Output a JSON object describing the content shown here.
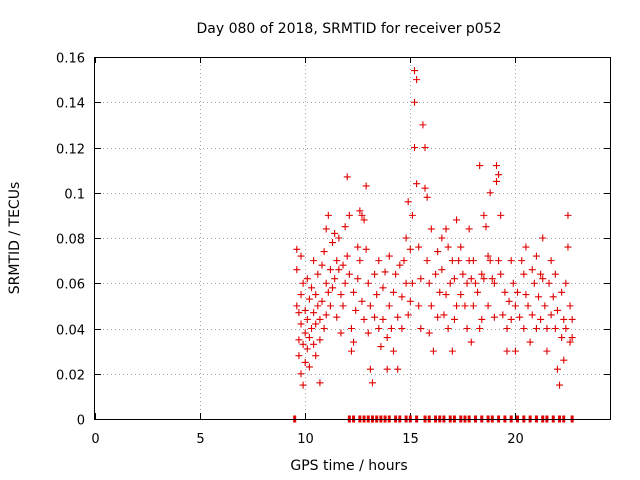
{
  "chart_data": {
    "type": "scatter",
    "title": "Day 080 of 2018, SRMTID for receiver p052",
    "xlabel": "GPS time / hours",
    "ylabel": "SRMTID / TECUs",
    "xlim": [
      0,
      24.5
    ],
    "ylim": [
      0,
      0.16
    ],
    "xticks": [
      0,
      5,
      10,
      15,
      20
    ],
    "xtick_labels": [
      "0",
      "5",
      "10",
      "15",
      "20"
    ],
    "yticks": [
      0,
      0.02,
      0.04,
      0.06,
      0.08,
      0.1,
      0.12,
      0.14,
      0.16
    ],
    "ytick_labels": [
      "0",
      "0.02",
      "0.04",
      "0.06",
      "0.08",
      "0.1",
      "0.12",
      "0.14",
      "0.16"
    ],
    "grid": true,
    "marker": "+",
    "color": "#e00000",
    "series": [
      {
        "name": "SRMTID",
        "marker": "+",
        "points": [
          [
            9.6,
            0.075
          ],
          [
            9.6,
            0.066
          ],
          [
            9.6,
            0.05
          ],
          [
            9.7,
            0.047
          ],
          [
            9.7,
            0.035
          ],
          [
            9.7,
            0.028
          ],
          [
            9.8,
            0.072
          ],
          [
            9.8,
            0.055
          ],
          [
            9.8,
            0.042
          ],
          [
            9.8,
            0.02
          ],
          [
            9.9,
            0.015
          ],
          [
            9.9,
            0.033
          ],
          [
            9.9,
            0.06
          ],
          [
            10.0,
            0.048
          ],
          [
            10.0,
            0.038
          ],
          [
            10.0,
            0.025
          ],
          [
            10.1,
            0.062
          ],
          [
            10.1,
            0.044
          ],
          [
            10.1,
            0.031
          ],
          [
            10.2,
            0.053
          ],
          [
            10.2,
            0.036
          ],
          [
            10.2,
            0.023
          ],
          [
            10.3,
            0.058
          ],
          [
            10.3,
            0.04
          ],
          [
            10.4,
            0.07
          ],
          [
            10.4,
            0.047
          ],
          [
            10.4,
            0.033
          ],
          [
            10.5,
            0.055
          ],
          [
            10.5,
            0.042
          ],
          [
            10.5,
            0.028
          ],
          [
            10.6,
            0.064
          ],
          [
            10.6,
            0.05
          ],
          [
            10.7,
            0.035
          ],
          [
            10.7,
            0.044
          ],
          [
            10.7,
            0.016
          ],
          [
            10.8,
            0.068
          ],
          [
            10.8,
            0.052
          ],
          [
            10.9,
            0.074
          ],
          [
            10.9,
            0.04
          ],
          [
            11.0,
            0.084
          ],
          [
            11.0,
            0.06
          ],
          [
            11.0,
            0.046
          ],
          [
            11.1,
            0.09
          ],
          [
            11.1,
            0.056
          ],
          [
            11.2,
            0.066
          ],
          [
            11.2,
            0.05
          ],
          [
            11.3,
            0.078
          ],
          [
            11.3,
            0.058
          ],
          [
            11.4,
            0.082
          ],
          [
            11.4,
            0.062
          ],
          [
            11.5,
            0.07
          ],
          [
            11.5,
            0.045
          ],
          [
            11.6,
            0.08
          ],
          [
            11.6,
            0.066
          ],
          [
            11.7,
            0.055
          ],
          [
            11.7,
            0.038
          ],
          [
            11.8,
            0.068
          ],
          [
            11.8,
            0.05
          ],
          [
            11.9,
            0.085
          ],
          [
            11.9,
            0.06
          ],
          [
            12.0,
            0.107
          ],
          [
            12.0,
            0.072
          ],
          [
            12.1,
            0.09
          ],
          [
            12.1,
            0.064
          ],
          [
            12.2,
            0.04
          ],
          [
            12.2,
            0.03
          ],
          [
            12.3,
            0.056
          ],
          [
            12.3,
            0.034
          ],
          [
            12.4,
            0.048
          ],
          [
            12.5,
            0.076
          ],
          [
            12.5,
            0.062
          ],
          [
            12.6,
            0.092
          ],
          [
            12.6,
            0.07
          ],
          [
            12.7,
            0.09
          ],
          [
            12.7,
            0.052
          ],
          [
            12.8,
            0.088
          ],
          [
            12.8,
            0.044
          ],
          [
            12.9,
            0.103
          ],
          [
            12.9,
            0.075
          ],
          [
            13.0,
            0.06
          ],
          [
            13.0,
            0.038
          ],
          [
            13.1,
            0.05
          ],
          [
            13.1,
            0.022
          ],
          [
            13.2,
            0.016
          ],
          [
            13.3,
            0.045
          ],
          [
            13.3,
            0.064
          ],
          [
            13.4,
            0.055
          ],
          [
            13.5,
            0.04
          ],
          [
            13.5,
            0.07
          ],
          [
            13.6,
            0.032
          ],
          [
            13.7,
            0.058
          ],
          [
            13.7,
            0.044
          ],
          [
            13.8,
            0.065
          ],
          [
            13.9,
            0.036
          ],
          [
            13.9,
            0.022
          ],
          [
            14.0,
            0.072
          ],
          [
            14.0,
            0.05
          ],
          [
            14.1,
            0.04
          ],
          [
            14.2,
            0.056
          ],
          [
            14.2,
            0.03
          ],
          [
            14.3,
            0.064
          ],
          [
            14.4,
            0.045
          ],
          [
            14.4,
            0.022
          ],
          [
            14.5,
            0.068
          ],
          [
            14.6,
            0.054
          ],
          [
            14.6,
            0.04
          ],
          [
            14.7,
            0.07
          ],
          [
            14.8,
            0.08
          ],
          [
            14.8,
            0.06
          ],
          [
            14.9,
            0.096
          ],
          [
            14.9,
            0.046
          ],
          [
            15.0,
            0.075
          ],
          [
            15.0,
            0.052
          ],
          [
            15.1,
            0.09
          ],
          [
            15.1,
            0.06
          ],
          [
            15.2,
            0.154
          ],
          [
            15.2,
            0.14
          ],
          [
            15.2,
            0.12
          ],
          [
            15.3,
            0.15
          ],
          [
            15.3,
            0.104
          ],
          [
            15.4,
            0.076
          ],
          [
            15.4,
            0.05
          ],
          [
            15.5,
            0.062
          ],
          [
            15.5,
            0.04
          ],
          [
            15.6,
            0.13
          ],
          [
            15.7,
            0.12
          ],
          [
            15.7,
            0.102
          ],
          [
            15.8,
            0.098
          ],
          [
            15.8,
            0.07
          ],
          [
            15.9,
            0.06
          ],
          [
            15.9,
            0.038
          ],
          [
            16.0,
            0.084
          ],
          [
            16.0,
            0.05
          ],
          [
            16.1,
            0.03
          ],
          [
            16.2,
            0.064
          ],
          [
            16.3,
            0.074
          ],
          [
            16.3,
            0.045
          ],
          [
            16.4,
            0.056
          ],
          [
            16.5,
            0.08
          ],
          [
            16.5,
            0.066
          ],
          [
            16.6,
            0.046
          ],
          [
            16.7,
            0.084
          ],
          [
            16.7,
            0.055
          ],
          [
            16.8,
            0.076
          ],
          [
            16.8,
            0.04
          ],
          [
            16.9,
            0.06
          ],
          [
            17.0,
            0.07
          ],
          [
            17.0,
            0.03
          ],
          [
            17.1,
            0.062
          ],
          [
            17.1,
            0.044
          ],
          [
            17.2,
            0.088
          ],
          [
            17.2,
            0.05
          ],
          [
            17.3,
            0.07
          ],
          [
            17.4,
            0.076
          ],
          [
            17.4,
            0.055
          ],
          [
            17.5,
            0.064
          ],
          [
            17.6,
            0.05
          ],
          [
            17.7,
            0.06
          ],
          [
            17.7,
            0.04
          ],
          [
            17.8,
            0.084
          ],
          [
            17.8,
            0.07
          ],
          [
            17.9,
            0.062
          ],
          [
            17.9,
            0.034
          ],
          [
            18.0,
            0.07
          ],
          [
            18.0,
            0.05
          ],
          [
            18.1,
            0.06
          ],
          [
            18.2,
            0.056
          ],
          [
            18.3,
            0.112
          ],
          [
            18.3,
            0.04
          ],
          [
            18.4,
            0.064
          ],
          [
            18.4,
            0.044
          ],
          [
            18.5,
            0.09
          ],
          [
            18.5,
            0.062
          ],
          [
            18.6,
            0.085
          ],
          [
            18.7,
            0.072
          ],
          [
            18.7,
            0.05
          ],
          [
            18.8,
            0.1
          ],
          [
            18.8,
            0.07
          ],
          [
            18.9,
            0.062
          ],
          [
            19.0,
            0.045
          ],
          [
            19.0,
            0.06
          ],
          [
            19.1,
            0.112
          ],
          [
            19.1,
            0.105
          ],
          [
            19.2,
            0.108
          ],
          [
            19.2,
            0.07
          ],
          [
            19.3,
            0.09
          ],
          [
            19.3,
            0.064
          ],
          [
            19.4,
            0.046
          ],
          [
            19.5,
            0.056
          ],
          [
            19.6,
            0.04
          ],
          [
            19.6,
            0.03
          ],
          [
            19.7,
            0.052
          ],
          [
            19.8,
            0.07
          ],
          [
            19.8,
            0.044
          ],
          [
            19.9,
            0.06
          ],
          [
            20.0,
            0.05
          ],
          [
            20.0,
            0.03
          ],
          [
            20.1,
            0.056
          ],
          [
            20.2,
            0.045
          ],
          [
            20.3,
            0.07
          ],
          [
            20.4,
            0.064
          ],
          [
            20.4,
            0.04
          ],
          [
            20.5,
            0.076
          ],
          [
            20.5,
            0.055
          ],
          [
            20.6,
            0.05
          ],
          [
            20.7,
            0.034
          ],
          [
            20.8,
            0.066
          ],
          [
            20.8,
            0.046
          ],
          [
            20.9,
            0.06
          ],
          [
            21.0,
            0.072
          ],
          [
            21.0,
            0.04
          ],
          [
            21.1,
            0.054
          ],
          [
            21.2,
            0.064
          ],
          [
            21.2,
            0.044
          ],
          [
            21.3,
            0.08
          ],
          [
            21.3,
            0.062
          ],
          [
            21.4,
            0.05
          ],
          [
            21.5,
            0.04
          ],
          [
            21.5,
            0.03
          ],
          [
            21.6,
            0.06
          ],
          [
            21.7,
            0.07
          ],
          [
            21.7,
            0.046
          ],
          [
            21.8,
            0.054
          ],
          [
            21.9,
            0.064
          ],
          [
            21.9,
            0.04
          ],
          [
            22.0,
            0.048
          ],
          [
            22.0,
            0.022
          ],
          [
            22.1,
            0.015
          ],
          [
            22.2,
            0.056
          ],
          [
            22.2,
            0.036
          ],
          [
            22.3,
            0.044
          ],
          [
            22.3,
            0.026
          ],
          [
            22.4,
            0.06
          ],
          [
            22.4,
            0.04
          ],
          [
            22.5,
            0.09
          ],
          [
            22.5,
            0.076
          ],
          [
            22.6,
            0.05
          ],
          [
            22.6,
            0.034
          ],
          [
            22.7,
            0.044
          ],
          [
            22.7,
            0.036
          ]
        ]
      },
      {
        "name": "zero-level",
        "marker": "|",
        "x": [
          9.5,
          12.1,
          12.3,
          12.6,
          12.8,
          13.0,
          13.2,
          13.4,
          13.6,
          13.8,
          14.0,
          14.3,
          14.5,
          14.8,
          15.0,
          15.3,
          15.7,
          15.9,
          16.2,
          16.4,
          16.6,
          16.9,
          17.1,
          17.4,
          17.6,
          17.8,
          18.1,
          18.4,
          18.7,
          18.9,
          19.2,
          19.5,
          19.8,
          20.1,
          20.4,
          20.7,
          21.0,
          21.3,
          21.5,
          21.8,
          22.1,
          22.3,
          22.7
        ],
        "y": 0
      }
    ]
  }
}
